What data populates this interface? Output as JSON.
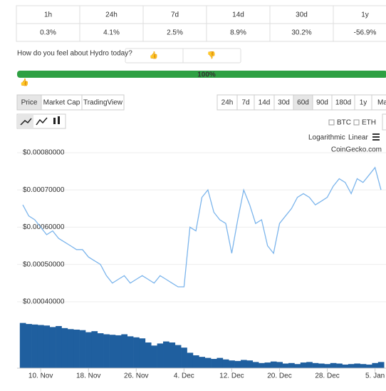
{
  "table": {
    "headers": [
      "1h",
      "24h",
      "7d",
      "14d",
      "30d",
      "1y"
    ],
    "values": [
      "0.3%",
      "4.1%",
      "2.5%",
      "8.9%",
      "30.2%",
      "-56.9%"
    ]
  },
  "sentiment": {
    "question": "How do you feel about Hydro today?",
    "percent": "100%"
  },
  "tabs": [
    "Price",
    "Market Cap",
    "TradingView"
  ],
  "ranges": [
    "24h",
    "7d",
    "14d",
    "30d",
    "60d",
    "90d",
    "180d",
    "1y",
    "Ma"
  ],
  "compare": [
    "BTC",
    "ETH"
  ],
  "scales": [
    "Logarithmic",
    "Linear"
  ],
  "chart_data": {
    "type": "line",
    "credit": "CoinGecko.com",
    "color": "#7cb5ec",
    "volume_color": "#1f5f9f",
    "x_labels": [
      "10. Nov",
      "18. Nov",
      "26. Nov",
      "4. Dec",
      "12. Dec",
      "20. Dec",
      "28. Dec",
      "5. Jan"
    ],
    "values": [
      0.00066,
      0.00063,
      0.00062,
      0.0006,
      0.00058,
      0.00059,
      0.00057,
      0.00056,
      0.00055,
      0.00054,
      0.00054,
      0.00052,
      0.00051,
      0.0005,
      0.00047,
      0.00045,
      0.00046,
      0.00047,
      0.00045,
      0.00046,
      0.00047,
      0.00046,
      0.00045,
      0.00047,
      0.00046,
      0.00045,
      0.00044,
      0.00044,
      0.0006,
      0.00059,
      0.00068,
      0.0007,
      0.00064,
      0.00062,
      0.00061,
      0.00053,
      0.00062,
      0.0007,
      0.00066,
      0.00061,
      0.00062,
      0.00055,
      0.00053,
      0.00061,
      0.00063,
      0.00065,
      0.00068,
      0.00069,
      0.00068,
      0.00066,
      0.00067,
      0.00068,
      0.00071,
      0.00073,
      0.00072,
      0.00069,
      0.00073,
      0.00072,
      0.00074,
      0.00076,
      0.0007
    ],
    "volume": [
      88,
      86,
      85,
      84,
      83,
      80,
      82,
      78,
      76,
      75,
      74,
      70,
      72,
      68,
      66,
      65,
      64,
      66,
      62,
      60,
      58,
      50,
      44,
      48,
      52,
      50,
      45,
      40,
      30,
      25,
      22,
      20,
      18,
      20,
      17,
      15,
      14,
      16,
      15,
      12,
      10,
      11,
      13,
      12,
      9,
      10,
      8,
      11,
      12,
      10,
      9,
      8,
      10,
      9,
      7,
      8,
      9,
      8,
      7,
      10,
      12
    ],
    "ylim": [
      0.00035,
      0.00082
    ],
    "yticks": [
      {
        "value": 0.0004,
        "label": "$0.00040000"
      },
      {
        "value": 0.0005,
        "label": "$0.00050000"
      },
      {
        "value": 0.0006,
        "label": "$0.00060000"
      },
      {
        "value": 0.0007,
        "label": "$0.00070000"
      },
      {
        "value": 0.0008,
        "label": "$0.00080000"
      }
    ]
  }
}
